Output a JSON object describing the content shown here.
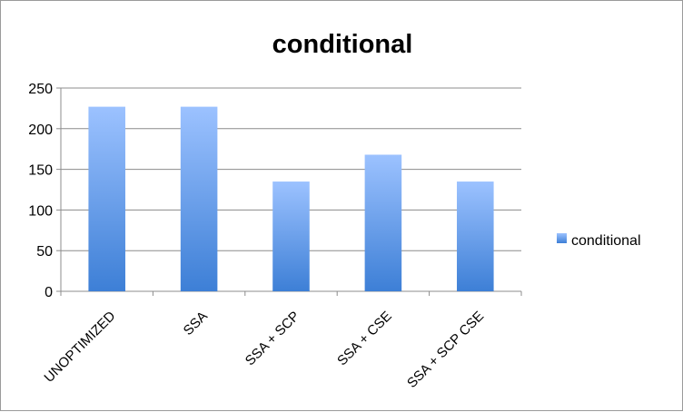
{
  "chart_data": {
    "type": "bar",
    "title": "conditional",
    "xlabel": "",
    "ylabel": "",
    "categories": [
      "UNOPTIMIZED",
      "SSA",
      "SSA + SCP",
      "SSA + CSE",
      "SSA + SCP CSE"
    ],
    "series": [
      {
        "name": "conditional",
        "values": [
          227,
          227,
          135,
          168,
          135
        ]
      }
    ],
    "ylim": [
      0,
      250
    ],
    "yticks": [
      0,
      50,
      100,
      150,
      200,
      250
    ],
    "grid": true,
    "legend_position": "right",
    "colors": {
      "bar_top": "#9cc2ff",
      "bar_bottom": "#3d7fd6",
      "grid": "#8c8c8c"
    }
  }
}
